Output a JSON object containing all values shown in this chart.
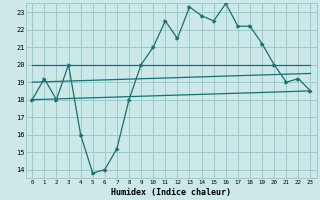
{
  "title": "",
  "xlabel": "Humidex (Indice chaleur)",
  "background_color": "#cce8e8",
  "grid_color": "#99cccc",
  "line_color": "#1a7070",
  "xlim": [
    -0.5,
    23.5
  ],
  "ylim": [
    13.5,
    23.5
  ],
  "yticks": [
    14,
    15,
    16,
    17,
    18,
    19,
    20,
    21,
    22,
    23
  ],
  "xticks": [
    0,
    1,
    2,
    3,
    4,
    5,
    6,
    7,
    8,
    9,
    10,
    11,
    12,
    13,
    14,
    15,
    16,
    17,
    18,
    19,
    20,
    21,
    22,
    23
  ],
  "main_x": [
    0,
    1,
    2,
    3,
    4,
    5,
    6,
    7,
    8,
    9,
    10,
    11,
    12,
    13,
    14,
    15,
    16,
    17,
    18,
    19,
    20,
    21,
    22,
    23
  ],
  "main_y": [
    18.0,
    19.2,
    18.0,
    20.0,
    16.0,
    13.8,
    14.0,
    15.2,
    18.0,
    20.0,
    21.0,
    22.5,
    21.5,
    23.3,
    22.8,
    22.5,
    23.5,
    22.2,
    22.2,
    21.2,
    20.0,
    19.0,
    19.2,
    18.5
  ],
  "line1_x": [
    0,
    23
  ],
  "line1_y": [
    20.0,
    20.0
  ],
  "line2_x": [
    0,
    23
  ],
  "line2_y": [
    19.0,
    19.5
  ],
  "line3_x": [
    0,
    23
  ],
  "line3_y": [
    18.0,
    18.5
  ]
}
